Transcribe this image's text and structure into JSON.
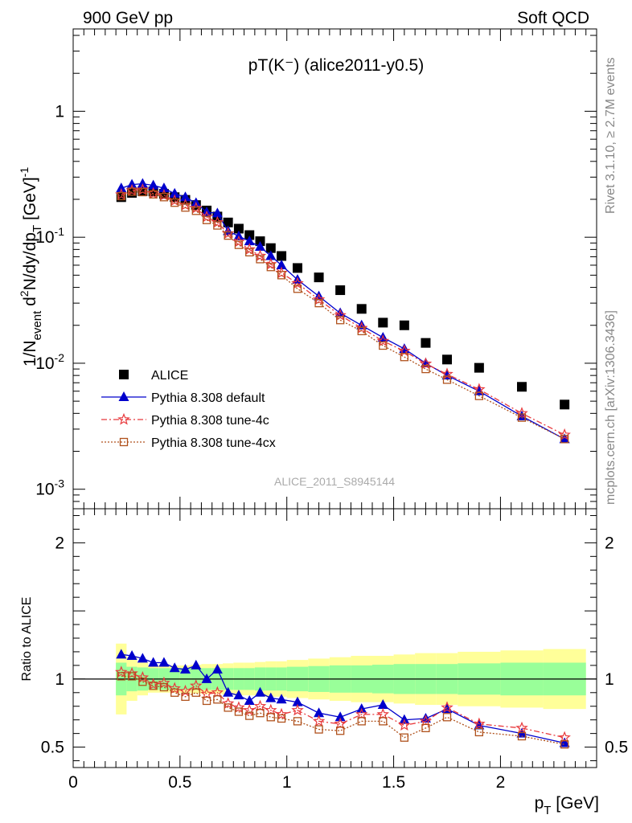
{
  "header": {
    "left": "900 GeV pp",
    "right": "Soft QCD"
  },
  "side_labels": {
    "rivet": "Rivet 3.1.10, ≥ 2.7M events",
    "mcplots": "mcplots.cern.ch [arXiv:1306.3436]"
  },
  "colors": {
    "alice": "#000000",
    "default": "#0000cc",
    "tune4c": "#e8393c",
    "tune4cx": "#b0521d",
    "band_stat": "#99ff99",
    "band_total": "#ffff99"
  },
  "chart_data": [
    {
      "type": "scatter",
      "title": "pT(K⁻) (alice2011-y0.5)",
      "watermark": "ALICE_2011_S8945144",
      "ylabel": "1/N_event d²N/dy/dp_T [GeV⁻¹]",
      "yscale": "log",
      "xlim": [
        0,
        2.45
      ],
      "ylim": [
        0.0007,
        4.5
      ],
      "yticks": [
        {
          "v": 0.001,
          "base": "10",
          "exp": "-3"
        },
        {
          "v": 0.01,
          "base": "10",
          "exp": "-2"
        },
        {
          "v": 0.1,
          "base": "10",
          "exp": "-1"
        },
        {
          "v": 1,
          "base": "1",
          "exp": ""
        }
      ],
      "x": [
        0.225,
        0.275,
        0.325,
        0.375,
        0.425,
        0.475,
        0.525,
        0.575,
        0.625,
        0.675,
        0.725,
        0.775,
        0.825,
        0.875,
        0.925,
        0.975,
        1.05,
        1.15,
        1.25,
        1.35,
        1.45,
        1.55,
        1.65,
        1.75,
        1.9,
        2.1,
        2.3
      ],
      "series": [
        {
          "name": "ALICE",
          "key": "alice",
          "marker": "square",
          "values": [
            0.208,
            0.225,
            0.232,
            0.231,
            0.221,
            0.208,
            0.198,
            0.18,
            0.163,
            0.146,
            0.131,
            0.117,
            0.104,
            0.093,
            0.082,
            0.071,
            0.057,
            0.048,
            0.038,
            0.027,
            0.021,
            0.02,
            0.0145,
            0.0107,
            0.0092,
            0.0065,
            0.0047
          ]
        },
        {
          "name": "Pythia 8.308 default",
          "key": "default",
          "marker": "triangle",
          "values": [
            0.245,
            0.262,
            0.266,
            0.258,
            0.245,
            0.222,
            0.208,
            0.187,
            0.158,
            0.155,
            0.112,
            0.102,
            0.093,
            0.084,
            0.071,
            0.06,
            0.046,
            0.034,
            0.025,
            0.02,
            0.016,
            0.013,
            0.01,
            0.008,
            0.006,
            0.0038,
            0.0025
          ]
        },
        {
          "name": "Pythia 8.308 tune-4c",
          "key": "tune4c",
          "marker": "star",
          "values": [
            0.218,
            0.235,
            0.238,
            0.222,
            0.215,
            0.195,
            0.18,
            0.17,
            0.145,
            0.131,
            0.107,
            0.092,
            0.08,
            0.071,
            0.061,
            0.052,
            0.043,
            0.032,
            0.024,
            0.019,
            0.015,
            0.0125,
            0.0099,
            0.0082,
            0.0062,
            0.004,
            0.0027
          ]
        },
        {
          "name": "Pythia 8.308 tune-4cx",
          "key": "tune4cx",
          "marker": "open-square",
          "values": [
            0.212,
            0.23,
            0.228,
            0.219,
            0.208,
            0.188,
            0.172,
            0.162,
            0.137,
            0.124,
            0.103,
            0.087,
            0.076,
            0.067,
            0.058,
            0.05,
            0.039,
            0.03,
            0.022,
            0.018,
            0.0138,
            0.0112,
            0.009,
            0.0074,
            0.0055,
            0.0037,
            0.0025
          ]
        }
      ],
      "legend": [
        "ALICE",
        "Pythia 8.308 default",
        "Pythia 8.308 tune-4c",
        "Pythia 8.308 tune-4cx"
      ]
    },
    {
      "type": "line",
      "ylabel": "Ratio to ALICE",
      "xlabel": "p_T [GeV]",
      "xlim": [
        0,
        2.45
      ],
      "ylim": [
        0.35,
        2.25
      ],
      "xticks": [
        {
          "v": 0,
          "label": "0"
        },
        {
          "v": 0.5,
          "label": "0.5"
        },
        {
          "v": 1,
          "label": "1"
        },
        {
          "v": 1.5,
          "label": "1.5"
        },
        {
          "v": 2,
          "label": "2"
        }
      ],
      "yticks": [
        {
          "v": 0.5,
          "label": "0.5"
        },
        {
          "v": 1,
          "label": "1"
        },
        {
          "v": 2,
          "label": "2"
        }
      ],
      "x": [
        0.225,
        0.275,
        0.325,
        0.375,
        0.425,
        0.475,
        0.525,
        0.575,
        0.625,
        0.675,
        0.725,
        0.775,
        0.825,
        0.875,
        0.925,
        0.975,
        1.05,
        1.15,
        1.25,
        1.35,
        1.45,
        1.55,
        1.65,
        1.75,
        1.9,
        2.1,
        2.3
      ],
      "bins": [
        [
          0.2,
          0.25
        ],
        [
          0.25,
          0.3
        ],
        [
          0.3,
          0.35
        ],
        [
          0.35,
          0.4
        ],
        [
          0.4,
          0.45
        ],
        [
          0.45,
          0.5
        ],
        [
          0.5,
          0.55
        ],
        [
          0.55,
          0.6
        ],
        [
          0.6,
          0.65
        ],
        [
          0.65,
          0.7
        ],
        [
          0.7,
          0.75
        ],
        [
          0.75,
          0.8
        ],
        [
          0.8,
          0.85
        ],
        [
          0.85,
          0.9
        ],
        [
          0.9,
          0.95
        ],
        [
          0.95,
          1.0
        ],
        [
          1.0,
          1.1
        ],
        [
          1.1,
          1.2
        ],
        [
          1.2,
          1.3
        ],
        [
          1.3,
          1.4
        ],
        [
          1.4,
          1.5
        ],
        [
          1.5,
          1.6
        ],
        [
          1.6,
          1.7
        ],
        [
          1.7,
          1.8
        ],
        [
          1.8,
          2.0
        ],
        [
          2.0,
          2.2
        ],
        [
          2.2,
          2.4
        ]
      ],
      "band_stat": [
        0.12,
        0.09,
        0.085,
        0.08,
        0.08,
        0.08,
        0.08,
        0.08,
        0.08,
        0.08,
        0.08,
        0.08,
        0.08,
        0.085,
        0.085,
        0.085,
        0.09,
        0.095,
        0.1,
        0.1,
        0.105,
        0.11,
        0.11,
        0.11,
        0.115,
        0.12,
        0.12
      ],
      "band_total": [
        0.26,
        0.16,
        0.12,
        0.1,
        0.1,
        0.1,
        0.1,
        0.105,
        0.11,
        0.11,
        0.115,
        0.12,
        0.12,
        0.125,
        0.13,
        0.13,
        0.14,
        0.15,
        0.16,
        0.17,
        0.17,
        0.18,
        0.19,
        0.19,
        0.2,
        0.21,
        0.22
      ],
      "reference": 1,
      "series": [
        {
          "name": "Pythia 8.308 default",
          "key": "default",
          "marker": "triangle",
          "values": [
            1.18,
            1.17,
            1.15,
            1.12,
            1.12,
            1.08,
            1.07,
            1.1,
            1.0,
            1.07,
            0.9,
            0.88,
            0.84,
            0.9,
            0.86,
            0.85,
            0.83,
            0.75,
            0.72,
            0.78,
            0.81,
            0.7,
            0.71,
            0.78,
            0.66,
            0.6,
            0.53
          ]
        },
        {
          "name": "Pythia 8.308 tune-4c",
          "key": "tune4c",
          "marker": "star",
          "values": [
            1.05,
            1.04,
            1.01,
            0.96,
            0.97,
            0.93,
            0.91,
            0.95,
            0.89,
            0.9,
            0.82,
            0.79,
            0.77,
            0.8,
            0.77,
            0.74,
            0.77,
            0.69,
            0.67,
            0.74,
            0.74,
            0.66,
            0.69,
            0.79,
            0.67,
            0.64,
            0.57
          ]
        },
        {
          "name": "Pythia 8.308 tune-4cx",
          "key": "tune4cx",
          "marker": "open-square",
          "values": [
            1.02,
            1.02,
            0.98,
            0.95,
            0.94,
            0.9,
            0.87,
            0.9,
            0.84,
            0.85,
            0.79,
            0.76,
            0.73,
            0.75,
            0.72,
            0.71,
            0.69,
            0.63,
            0.62,
            0.69,
            0.69,
            0.57,
            0.64,
            0.72,
            0.61,
            0.58,
            0.52
          ]
        }
      ]
    }
  ]
}
